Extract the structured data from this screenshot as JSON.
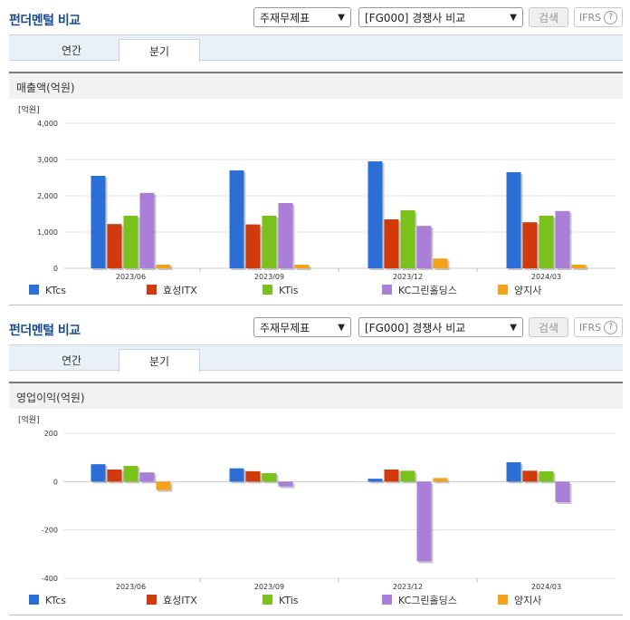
{
  "panels": [
    {
      "section_title": "펀더멘털 비교",
      "statement_select": "주재무제표",
      "company_select": "[FG000] 경쟁사 비교",
      "search_label": "검색",
      "ifrs_label": "IFRS",
      "help_glyph": "?",
      "tabs": [
        "연간",
        "분기"
      ],
      "active_tab": "분기",
      "metric_title": "매출액(억원)"
    },
    {
      "section_title": "펀더멘털 비교",
      "statement_select": "주재무제표",
      "company_select": "[FG000] 경쟁사 비교",
      "search_label": "검색",
      "ifrs_label": "IFRS",
      "help_glyph": "?",
      "tabs": [
        "연간",
        "분기"
      ],
      "active_tab": "분기",
      "metric_title": "영업이익(억원)"
    }
  ],
  "chart_data": [
    {
      "type": "bar",
      "title": "매출액(억원)",
      "unit_label": "[억원]",
      "categories": [
        "2023/06",
        "2023/09",
        "2023/12",
        "2024/03"
      ],
      "ylim": [
        0,
        4000
      ],
      "yticks": [
        0,
        1000,
        2000,
        3000,
        4000
      ],
      "ytick_labels": [
        "0",
        "1,000",
        "2,000",
        "3,000",
        "4,000"
      ],
      "grid": true,
      "legend": "bottom",
      "series": [
        {
          "name": "KTcs",
          "color": "#2b6fd6",
          "values": [
            2550,
            2700,
            2950,
            2650
          ]
        },
        {
          "name": "효성ITX",
          "color": "#d03a0c",
          "values": [
            1220,
            1210,
            1350,
            1270
          ]
        },
        {
          "name": "KTis",
          "color": "#7ac11b",
          "values": [
            1450,
            1450,
            1600,
            1450
          ]
        },
        {
          "name": "KC그린홀딩스",
          "color": "#a97fd8",
          "values": [
            2080,
            1800,
            1170,
            1580
          ]
        },
        {
          "name": "양지사",
          "color": "#f5a21b",
          "values": [
            100,
            100,
            270,
            100
          ]
        }
      ]
    },
    {
      "type": "bar",
      "title": "영업이익(억원)",
      "unit_label": "[억원]",
      "categories": [
        "2023/06",
        "2023/09",
        "2023/12",
        "2024/03"
      ],
      "ylim": [
        -400,
        200
      ],
      "yticks": [
        -400,
        -200,
        0,
        200
      ],
      "ytick_labels": [
        "-400",
        "-200",
        "0",
        "200"
      ],
      "grid": true,
      "legend": "bottom",
      "series": [
        {
          "name": "KTcs",
          "color": "#2b6fd6",
          "values": [
            72,
            55,
            12,
            80
          ]
        },
        {
          "name": "효성ITX",
          "color": "#d03a0c",
          "values": [
            50,
            43,
            50,
            45
          ]
        },
        {
          "name": "KTis",
          "color": "#7ac11b",
          "values": [
            65,
            35,
            45,
            43
          ]
        },
        {
          "name": "KC그린홀딩스",
          "color": "#a97fd8",
          "values": [
            38,
            -20,
            -330,
            -85
          ]
        },
        {
          "name": "양지사",
          "color": "#f5a21b",
          "values": [
            -35,
            0,
            15,
            0
          ]
        }
      ]
    }
  ]
}
